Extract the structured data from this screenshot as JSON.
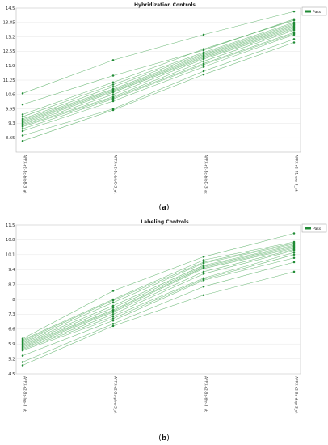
{
  "chart_data": [
    {
      "type": "line",
      "panel_label": "a",
      "title": "Hybridization Controls",
      "xlabel": "",
      "ylabel": "",
      "legend": [
        "Pass"
      ],
      "legend_position": "top-right",
      "grid": true,
      "categories": [
        "AFFX-r2-Ec-bioB-3_at",
        "AFFX-r2-Ec-bioC-3_at",
        "AFFX-r2-Ec-bioD-3_at",
        "AFFX-r2-P1-cre-3_at"
      ],
      "category_labels": [
        "AFFX-r2-Ec-bioB-3_at",
        "AFFX-r2-Ec-bioC-3_at",
        "AFFX-r2-Ec-bioD-3_at",
        "AFFX-r2-P1-cre-3_at"
      ],
      "ylim": [
        8,
        14.5
      ],
      "yticks": [
        8.65,
        9.3,
        9.95,
        10.6,
        11.25,
        11.9,
        12.55,
        13.2,
        13.85,
        14.5
      ],
      "series": [
        {
          "values": [
            10.65,
            12.15,
            13.3,
            14.35
          ]
        },
        {
          "values": [
            10.15,
            11.45,
            12.6,
            14.0
          ]
        },
        {
          "values": [
            9.7,
            11.15,
            12.65,
            13.95
          ]
        },
        {
          "values": [
            9.6,
            11.05,
            12.5,
            13.85
          ]
        },
        {
          "values": [
            9.5,
            10.95,
            12.45,
            13.8
          ]
        },
        {
          "values": [
            9.45,
            10.85,
            12.4,
            13.75
          ]
        },
        {
          "values": [
            9.4,
            10.8,
            12.35,
            13.7
          ]
        },
        {
          "values": [
            9.35,
            10.75,
            12.3,
            13.65
          ]
        },
        {
          "values": [
            9.3,
            10.7,
            12.25,
            13.6
          ]
        },
        {
          "values": [
            9.25,
            10.6,
            12.2,
            13.55
          ]
        },
        {
          "values": [
            9.2,
            10.5,
            12.1,
            13.5
          ]
        },
        {
          "values": [
            9.15,
            10.45,
            12.0,
            13.4
          ]
        },
        {
          "values": [
            9.05,
            10.4,
            11.95,
            13.35
          ]
        },
        {
          "values": [
            8.95,
            10.3,
            11.85,
            13.3
          ]
        },
        {
          "values": [
            8.75,
            9.95,
            11.65,
            13.1
          ]
        },
        {
          "values": [
            8.5,
            9.9,
            11.5,
            12.95
          ]
        }
      ]
    },
    {
      "type": "line",
      "panel_label": "b",
      "title": "Labeling Controls",
      "xlabel": "",
      "ylabel": "",
      "legend": [
        "Pass"
      ],
      "legend_position": "top-right",
      "grid": true,
      "categories": [
        "AFFX-r2-Bs-lys-3_st",
        "AFFX-r2-Bs-phe-3_st",
        "AFFX-r2-Bs-thr-3_st",
        "AFFX-r2-Bs-dap-3_st"
      ],
      "category_labels": [
        "AFFX-r2-Bs-lys-3_st",
        "AFFX-r2-Bs-phe-3_st",
        "AFFX-r2-Bs-thr-3_st",
        "AFFX-r2-Bs-dap-3_st"
      ],
      "ylim": [
        4.5,
        11.5
      ],
      "yticks": [
        4.5,
        5.2,
        5.9,
        6.6,
        7.3,
        8,
        8.7,
        9.4,
        10.1,
        10.8,
        11.5
      ],
      "series": [
        {
          "values": [
            6.15,
            8.4,
            10.0,
            11.1
          ]
        },
        {
          "values": [
            6.1,
            8.0,
            9.85,
            10.7
          ]
        },
        {
          "values": [
            6.05,
            7.95,
            9.75,
            10.65
          ]
        },
        {
          "values": [
            6.0,
            7.85,
            9.7,
            10.6
          ]
        },
        {
          "values": [
            5.95,
            7.7,
            9.6,
            10.55
          ]
        },
        {
          "values": [
            5.9,
            7.6,
            9.55,
            10.5
          ]
        },
        {
          "values": [
            5.85,
            7.5,
            9.5,
            10.45
          ]
        },
        {
          "values": [
            5.8,
            7.45,
            9.45,
            10.4
          ]
        },
        {
          "values": [
            5.75,
            7.4,
            9.3,
            10.35
          ]
        },
        {
          "values": [
            5.7,
            7.3,
            9.2,
            10.3
          ]
        },
        {
          "values": [
            5.65,
            7.2,
            9.0,
            10.2
          ]
        },
        {
          "values": [
            5.6,
            7.1,
            8.95,
            10.1
          ]
        },
        {
          "values": [
            5.35,
            7.0,
            8.9,
            9.95
          ]
        },
        {
          "values": [
            5.05,
            6.85,
            8.6,
            9.75
          ]
        },
        {
          "values": [
            4.9,
            6.75,
            8.2,
            9.3
          ]
        }
      ]
    }
  ]
}
